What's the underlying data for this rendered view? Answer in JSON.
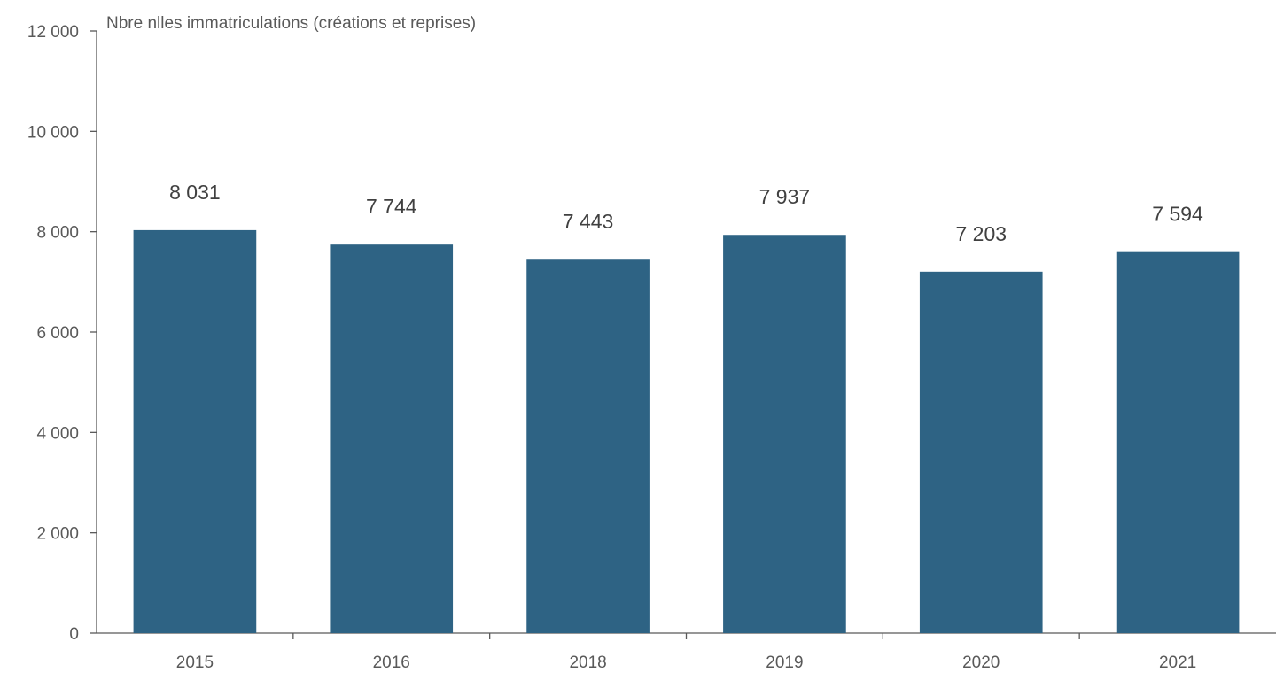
{
  "chart_data": {
    "type": "bar",
    "ylabel": "Nbre nlles immatriculations (créations et reprises)",
    "categories": [
      "2015",
      "2016",
      "2018",
      "2019",
      "2020",
      "2021"
    ],
    "values": [
      8031,
      7744,
      7443,
      7937,
      7203,
      7594
    ],
    "data_labels": [
      "8 031",
      "7 744",
      "7 443",
      "7 937",
      "7 203",
      "7 594"
    ],
    "ylim": [
      0,
      12000
    ],
    "yticks": [
      0,
      2000,
      4000,
      6000,
      8000,
      10000,
      12000
    ],
    "ytick_labels": [
      "0",
      "2 000",
      "4 000",
      "6 000",
      "8 000",
      "10 000",
      "12 000"
    ],
    "grid": false,
    "legend": "none",
    "bar_color": "#2e6384"
  }
}
